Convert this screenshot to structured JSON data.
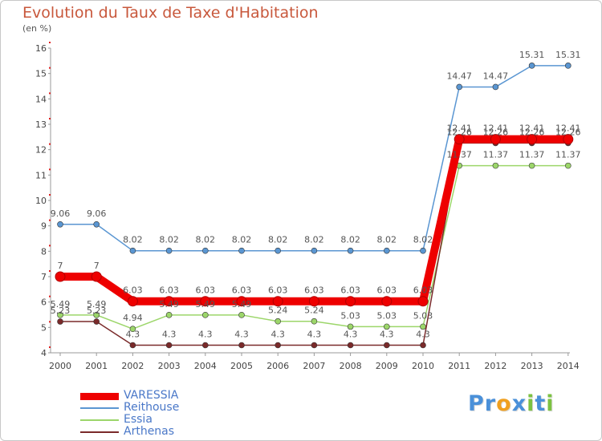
{
  "chart_data": {
    "type": "line",
    "title": "Evolution du Taux de Taxe d'Habitation",
    "subtitle": "(en %)",
    "x": [
      "2000",
      "2001",
      "2002",
      "2003",
      "2004",
      "2005",
      "2006",
      "2007",
      "2008",
      "2009",
      "2010",
      "2011",
      "2012",
      "2013",
      "2014"
    ],
    "ylim": [
      4,
      16
    ],
    "yticks": [
      "4",
      "5",
      "6",
      "7",
      "8",
      "9",
      "10",
      "11",
      "12",
      "13",
      "14",
      "15",
      "16"
    ],
    "grid": false,
    "legend_position": "bottom-left",
    "series": [
      {
        "name": "VARESSIA",
        "color": "#ee0000",
        "values": [
          7,
          7,
          6.03,
          6.03,
          6.03,
          6.03,
          6.03,
          6.03,
          6.03,
          6.03,
          6.03,
          12.41,
          12.41,
          12.41,
          12.41
        ],
        "labels": [
          "7",
          "7",
          "6.03",
          "6.03",
          "6.03",
          "6.03",
          "6.03",
          "6.03",
          "6.03",
          "6.03",
          "6.03",
          "12.41",
          "12.41",
          "12.41",
          "12.41"
        ]
      },
      {
        "name": "Reithouse",
        "color": "#5a96d2",
        "values": [
          9.06,
          9.06,
          8.02,
          8.02,
          8.02,
          8.02,
          8.02,
          8.02,
          8.02,
          8.02,
          8.02,
          14.47,
          14.47,
          15.31,
          15.31
        ],
        "labels": [
          "9.06",
          "9.06",
          "8.02",
          "8.02",
          "8.02",
          "8.02",
          "8.02",
          "8.02",
          "8.02",
          "8.02",
          "8.02",
          "14.47",
          "14.47",
          "15.31",
          "15.31"
        ]
      },
      {
        "name": "Essia",
        "color": "#9cd66a",
        "values": [
          5.49,
          5.49,
          4.94,
          5.49,
          5.49,
          5.49,
          5.24,
          5.24,
          5.03,
          5.03,
          5.03,
          11.37,
          11.37,
          11.37,
          11.37
        ],
        "labels": [
          "5.49",
          "5.49",
          "4.94",
          "5.49",
          "5.49",
          "5.49",
          "5.24",
          "5.24",
          "5.03",
          "5.03",
          "5.03",
          "11.37",
          "11.37",
          "11.37",
          "11.37"
        ]
      },
      {
        "name": "Arthenas",
        "color": "#7a2a2a",
        "values": [
          5.23,
          5.23,
          4.3,
          4.3,
          4.3,
          4.3,
          4.3,
          4.3,
          4.3,
          4.3,
          4.3,
          12.26,
          12.26,
          12.26,
          12.26
        ],
        "labels": [
          "5.23",
          "5.23",
          "4.3",
          "4.3",
          "4.3",
          "4.3",
          "4.3",
          "4.3",
          "4.3",
          "4.3",
          "4.3",
          "12.26",
          "12.26",
          "12.26",
          "12.26"
        ]
      }
    ]
  },
  "logo": {
    "letters": [
      "P",
      "r",
      "o",
      "x",
      "i",
      "t",
      "i"
    ],
    "colors": [
      "#4a90d9",
      "#4a90d9",
      "#f0a020",
      "#4a90d9",
      "#7cc242",
      "#4a90d9",
      "#7cc242"
    ]
  }
}
